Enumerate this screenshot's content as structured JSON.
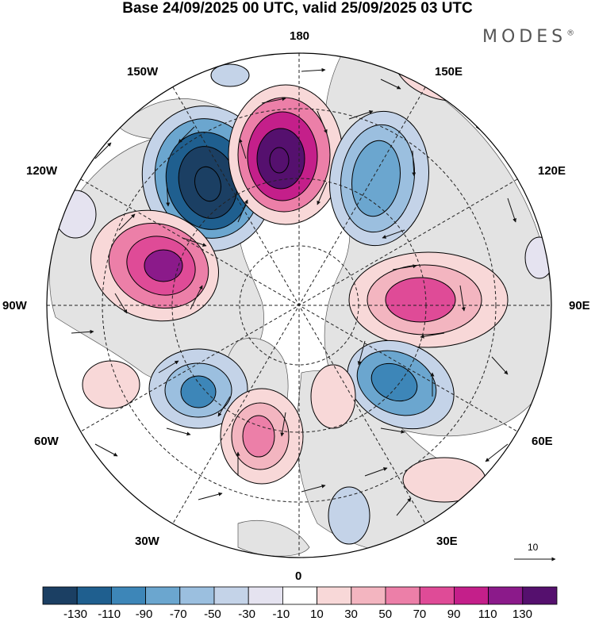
{
  "title": "Base 24/09/2025 00 UTC, valid 25/09/2025 03 UTC",
  "brand": {
    "name": "MODES",
    "mark": "®"
  },
  "meridian_labels": {
    "m180": "180",
    "m150w": "150W",
    "m150e": "150E",
    "m120w": "120W",
    "m120e": "120E",
    "m90w": "90W",
    "m90e": "90E",
    "m60w": "60W",
    "m60e": "60E",
    "m30w": "30W",
    "m30e": "30E",
    "m0": "0"
  },
  "reference_vector": {
    "label": "10"
  },
  "colorbar": {
    "ticks": [
      "-130",
      "-110",
      "-90",
      "-70",
      "-50",
      "-30",
      "-10",
      "10",
      "30",
      "50",
      "70",
      "90",
      "110",
      "130"
    ],
    "colors": [
      "#1b3f63",
      "#1f5f8f",
      "#3d86b8",
      "#6ba6cf",
      "#9bbfdf",
      "#c4d3e8",
      "#e5e3f0",
      "#ffffff",
      "#f8d8d8",
      "#f3b5c0",
      "#ec7fa8",
      "#df4b97",
      "#c41f8a",
      "#8b1a8a",
      "#55106e"
    ]
  },
  "colors": {
    "land": "#e3e3e3",
    "grid": "#222222",
    "coast": "#555555",
    "arrows": "#111111"
  },
  "map_data": {
    "projection": "north-polar-stereographic",
    "anomalies": [
      {
        "name": "negative-anomaly-east-siberian-sea",
        "level": -130
      },
      {
        "name": "positive-anomaly-bering-strait",
        "level": 130
      },
      {
        "name": "negative-anomaly-chukotka",
        "level": -70
      },
      {
        "name": "positive-anomaly-canada",
        "level": 110
      },
      {
        "name": "positive-anomaly-central-siberia",
        "level": 70
      },
      {
        "name": "negative-anomaly-barents-sea",
        "level": -90
      },
      {
        "name": "negative-anomaly-labrador-sea",
        "level": -70
      },
      {
        "name": "positive-anomaly-north-atlantic",
        "level": 70
      },
      {
        "name": "positive-anomaly-scandinavia",
        "level": 30
      }
    ]
  }
}
